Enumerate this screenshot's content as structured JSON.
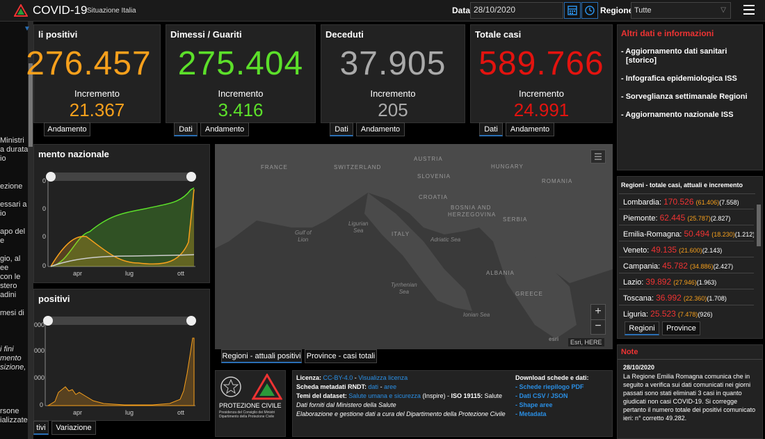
{
  "header": {
    "title": "COVID-19",
    "subtitle": "Situazione Italia",
    "date_label": "Data",
    "date_value": "28/10/2020",
    "region_label": "Regione",
    "region_value": "Tutte"
  },
  "sidebar": {
    "lines": [
      "Ministri",
      "a durata",
      "io",
      "ezione",
      "essari a",
      "io",
      "apo del",
      "e",
      "gio, al",
      "ee",
      "con le",
      "stero",
      "adini",
      "mesi di",
      "i fini",
      "mento",
      "sizione,",
      "rsone",
      "ializzate"
    ]
  },
  "cards": [
    {
      "title": "li positivi",
      "value": "276.457",
      "inc_label": "Incremento",
      "inc_value": "21.367",
      "color": "#f7a01c",
      "tabs": [
        "Andamento"
      ]
    },
    {
      "title": "Dimessi / Guariti",
      "value": "275.404",
      "inc_label": "Incremento",
      "inc_value": "3.416",
      "color": "#5ce02a",
      "tabs": [
        "Dati",
        "Andamento"
      ]
    },
    {
      "title": "Deceduti",
      "value": "37.905",
      "inc_label": "Incremento",
      "inc_value": "205",
      "color": "#aaaaaa",
      "tabs": [
        "Dati",
        "Andamento"
      ]
    },
    {
      "title": "Totale casi",
      "value": "589.766",
      "inc_label": "Incremento",
      "inc_value": "24.991",
      "color": "#e3130f",
      "tabs": [
        "Dati",
        "Andamento"
      ]
    }
  ],
  "info": {
    "title": "Altri dati e informazioni",
    "items": [
      "- Aggiornamento dati sanitari",
      "[storico]",
      "- Infografica epidemiologica ISS",
      "- Sorveglianza settimanale Regioni",
      "- Aggiornamento nazionale ISS"
    ]
  },
  "regions": {
    "title": "Regioni - totale casi, attuali e incremento",
    "rows": [
      {
        "name": "Lombardia:",
        "tot": "170.526",
        "att": "(61.406)",
        "inc": "(7.558)"
      },
      {
        "name": "Piemonte:",
        "tot": "62.445",
        "att": "(25.787)",
        "inc": "(2.827)"
      },
      {
        "name": "Emilia-Romagna:",
        "tot": "50.494",
        "att": "(18.230)",
        "inc": "(1.212)"
      },
      {
        "name": "Veneto:",
        "tot": "49.135",
        "att": "(21.600)",
        "inc": "(2.143)"
      },
      {
        "name": "Campania:",
        "tot": "45.782",
        "att": "(34.886)",
        "inc": "(2.427)"
      },
      {
        "name": "Lazio:",
        "tot": "39.892",
        "att": "(27.946)",
        "inc": "(1.963)"
      },
      {
        "name": "Toscana:",
        "tot": "36.992",
        "att": "(22.360)",
        "inc": "(1.708)"
      },
      {
        "name": "Liguria:",
        "tot": "25.523",
        "att": "(7.478)",
        "inc": "(926)"
      }
    ],
    "tabs": [
      "Regioni",
      "Province"
    ]
  },
  "chart1": {
    "title": "mento nazionale",
    "yticks": [
      "0",
      "0",
      "0",
      "0"
    ],
    "xticks": [
      "apr",
      "lug",
      "ott"
    ]
  },
  "chart2": {
    "title": "positivi",
    "yticks": [
      "000",
      "000",
      "000",
      "0"
    ],
    "xticks": [
      "apr",
      "lug",
      "ott"
    ],
    "tabs": [
      "tivi",
      "Variazione"
    ]
  },
  "map": {
    "countries": [
      "FRANCE",
      "SWITZERLAND",
      "AUSTRIA",
      "HUNGARY",
      "SLOVENIA",
      "CROATIA",
      "ROMANIA",
      "BOSNIA AND",
      "HERZEGOVINA",
      "SERBIA",
      "ITALY",
      "ALBANIA",
      "GREECE"
    ],
    "seas": [
      "Gulf of\nLion",
      "Ligurian\nSea",
      "Adriatic Sea",
      "Tyrrhenian\nSea",
      "Ionian Sea"
    ],
    "attribution": "Esri, HERE",
    "esri": "esri",
    "tabs": [
      "Regioni - attuali positivi",
      "Province - casi totali"
    ]
  },
  "footer": {
    "org1": "PROTEZIONE CIVILE",
    "org2": "Presidenza del Consiglio dei Ministri",
    "org3": "Dipartimento della Protezione Civile",
    "license_label": "Licenza:",
    "license_link": "CC-BY-4.0",
    "license_sep": " - ",
    "license_view": "Visualizza licenza",
    "meta_label": "Scheda metadati RNDT:",
    "meta_link1": "dati",
    "meta_link2": "aree",
    "themes_label": "Temi del dataset:",
    "themes_link": "Salute umana e sicurezza",
    "themes_rest": " (Inspire) - ",
    "iso": "ISO 19115:",
    "iso_val": " Salute",
    "source": "Dati forniti dal Ministero della Salute",
    "processing": "Elaborazione e gestione dati a cura del Dipartimento della Protezione Civile",
    "download_title": "Download schede e dati:",
    "downloads": [
      "- Schede riepilogo PDF",
      "- Dati CSV / JSON",
      "- Shape aree",
      "- Metadata"
    ]
  },
  "note": {
    "title": "Note",
    "date": "28/10/2020",
    "text": "La Regione Emilia Romagna comunica che in seguito a verifica sui dati comunicati nei giorni passati sono stati eliminati 3 casi in quanto giudicati non casi COVID-19. Si corregge pertanto il numero totale dei positivi comunicato ieri: n° corretto 49.282."
  },
  "colors": {
    "accent": "#2a6fb5",
    "positive": "#f7a01c",
    "recovered": "#5ce02a",
    "deceased": "#aaaaaa",
    "total": "#e3130f"
  }
}
